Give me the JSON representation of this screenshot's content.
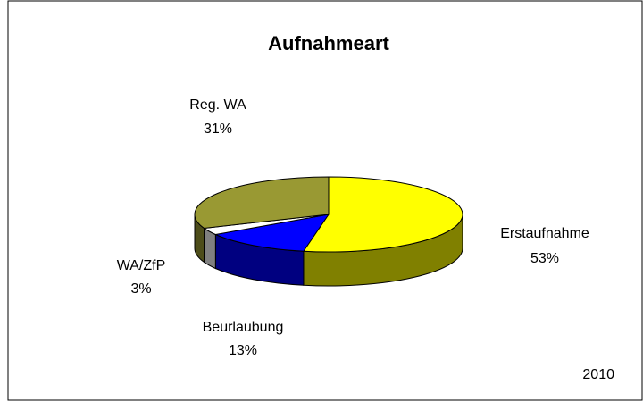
{
  "chart_data": {
    "type": "pie3d",
    "title": "Aufnahmeart",
    "categories": [
      "Erstaufnahme",
      "Beurlaubung",
      "WA/ZfP",
      "Reg. WA"
    ],
    "values": [
      53,
      13,
      3,
      31
    ],
    "value_labels": [
      "53%",
      "13%",
      "3%",
      "31%"
    ],
    "colors": [
      "#ffff00",
      "#0000ff",
      "#ffffff",
      "#999933"
    ],
    "annotation": "2010"
  }
}
